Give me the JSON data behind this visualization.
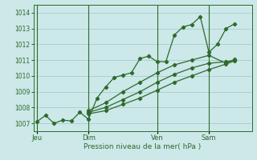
{
  "title": "",
  "xlabel": "Pression niveau de la mer( hPa )",
  "ylabel": "",
  "bg_color": "#cce8e8",
  "plot_bg_color": "#cce8e8",
  "line_color": "#2d6a2d",
  "grid_color": "#a0c8c8",
  "tick_label_color": "#2d6a2d",
  "ylim": [
    1006.5,
    1014.5
  ],
  "yticks": [
    1007,
    1008,
    1009,
    1010,
    1011,
    1012,
    1013,
    1014
  ],
  "day_labels": [
    "Jeu",
    "Dim",
    "Ven",
    "Sam"
  ],
  "day_positions": [
    0.0,
    3.0,
    7.0,
    10.0
  ],
  "xlim": [
    -0.2,
    12.5
  ],
  "series1": {
    "x": [
      0.0,
      0.5,
      1.0,
      1.5,
      2.0,
      2.5,
      3.0,
      3.5,
      4.0,
      4.5,
      5.0,
      5.5,
      6.0,
      6.5,
      7.0,
      7.5,
      8.0,
      8.5,
      9.0,
      9.5,
      10.0,
      10.5,
      11.0,
      11.5
    ],
    "y": [
      1007.1,
      1007.5,
      1007.0,
      1007.2,
      1007.15,
      1007.7,
      1007.25,
      1008.6,
      1009.3,
      1009.9,
      1010.05,
      1010.2,
      1011.1,
      1011.25,
      1010.9,
      1010.9,
      1012.6,
      1013.1,
      1013.25,
      1013.75,
      1011.5,
      1012.0,
      1013.0,
      1013.3
    ]
  },
  "series2": {
    "x": [
      3.0,
      4.0,
      5.0,
      6.0,
      7.0,
      8.0,
      9.0,
      10.0,
      11.0,
      11.5
    ],
    "y": [
      1007.8,
      1008.3,
      1009.0,
      1009.6,
      1010.2,
      1010.7,
      1011.0,
      1011.3,
      1010.8,
      1011.05
    ]
  },
  "series3": {
    "x": [
      3.0,
      4.0,
      5.0,
      6.0,
      7.0,
      8.0,
      9.0,
      10.0,
      11.0,
      11.5
    ],
    "y": [
      1007.7,
      1008.0,
      1008.5,
      1009.0,
      1009.6,
      1010.1,
      1010.5,
      1010.8,
      1010.9,
      1011.0
    ]
  },
  "series4": {
    "x": [
      3.0,
      4.0,
      5.0,
      6.0,
      7.0,
      8.0,
      9.0,
      10.0,
      11.0,
      11.5
    ],
    "y": [
      1007.6,
      1007.8,
      1008.2,
      1008.6,
      1009.1,
      1009.6,
      1010.0,
      1010.4,
      1010.75,
      1010.95
    ]
  }
}
